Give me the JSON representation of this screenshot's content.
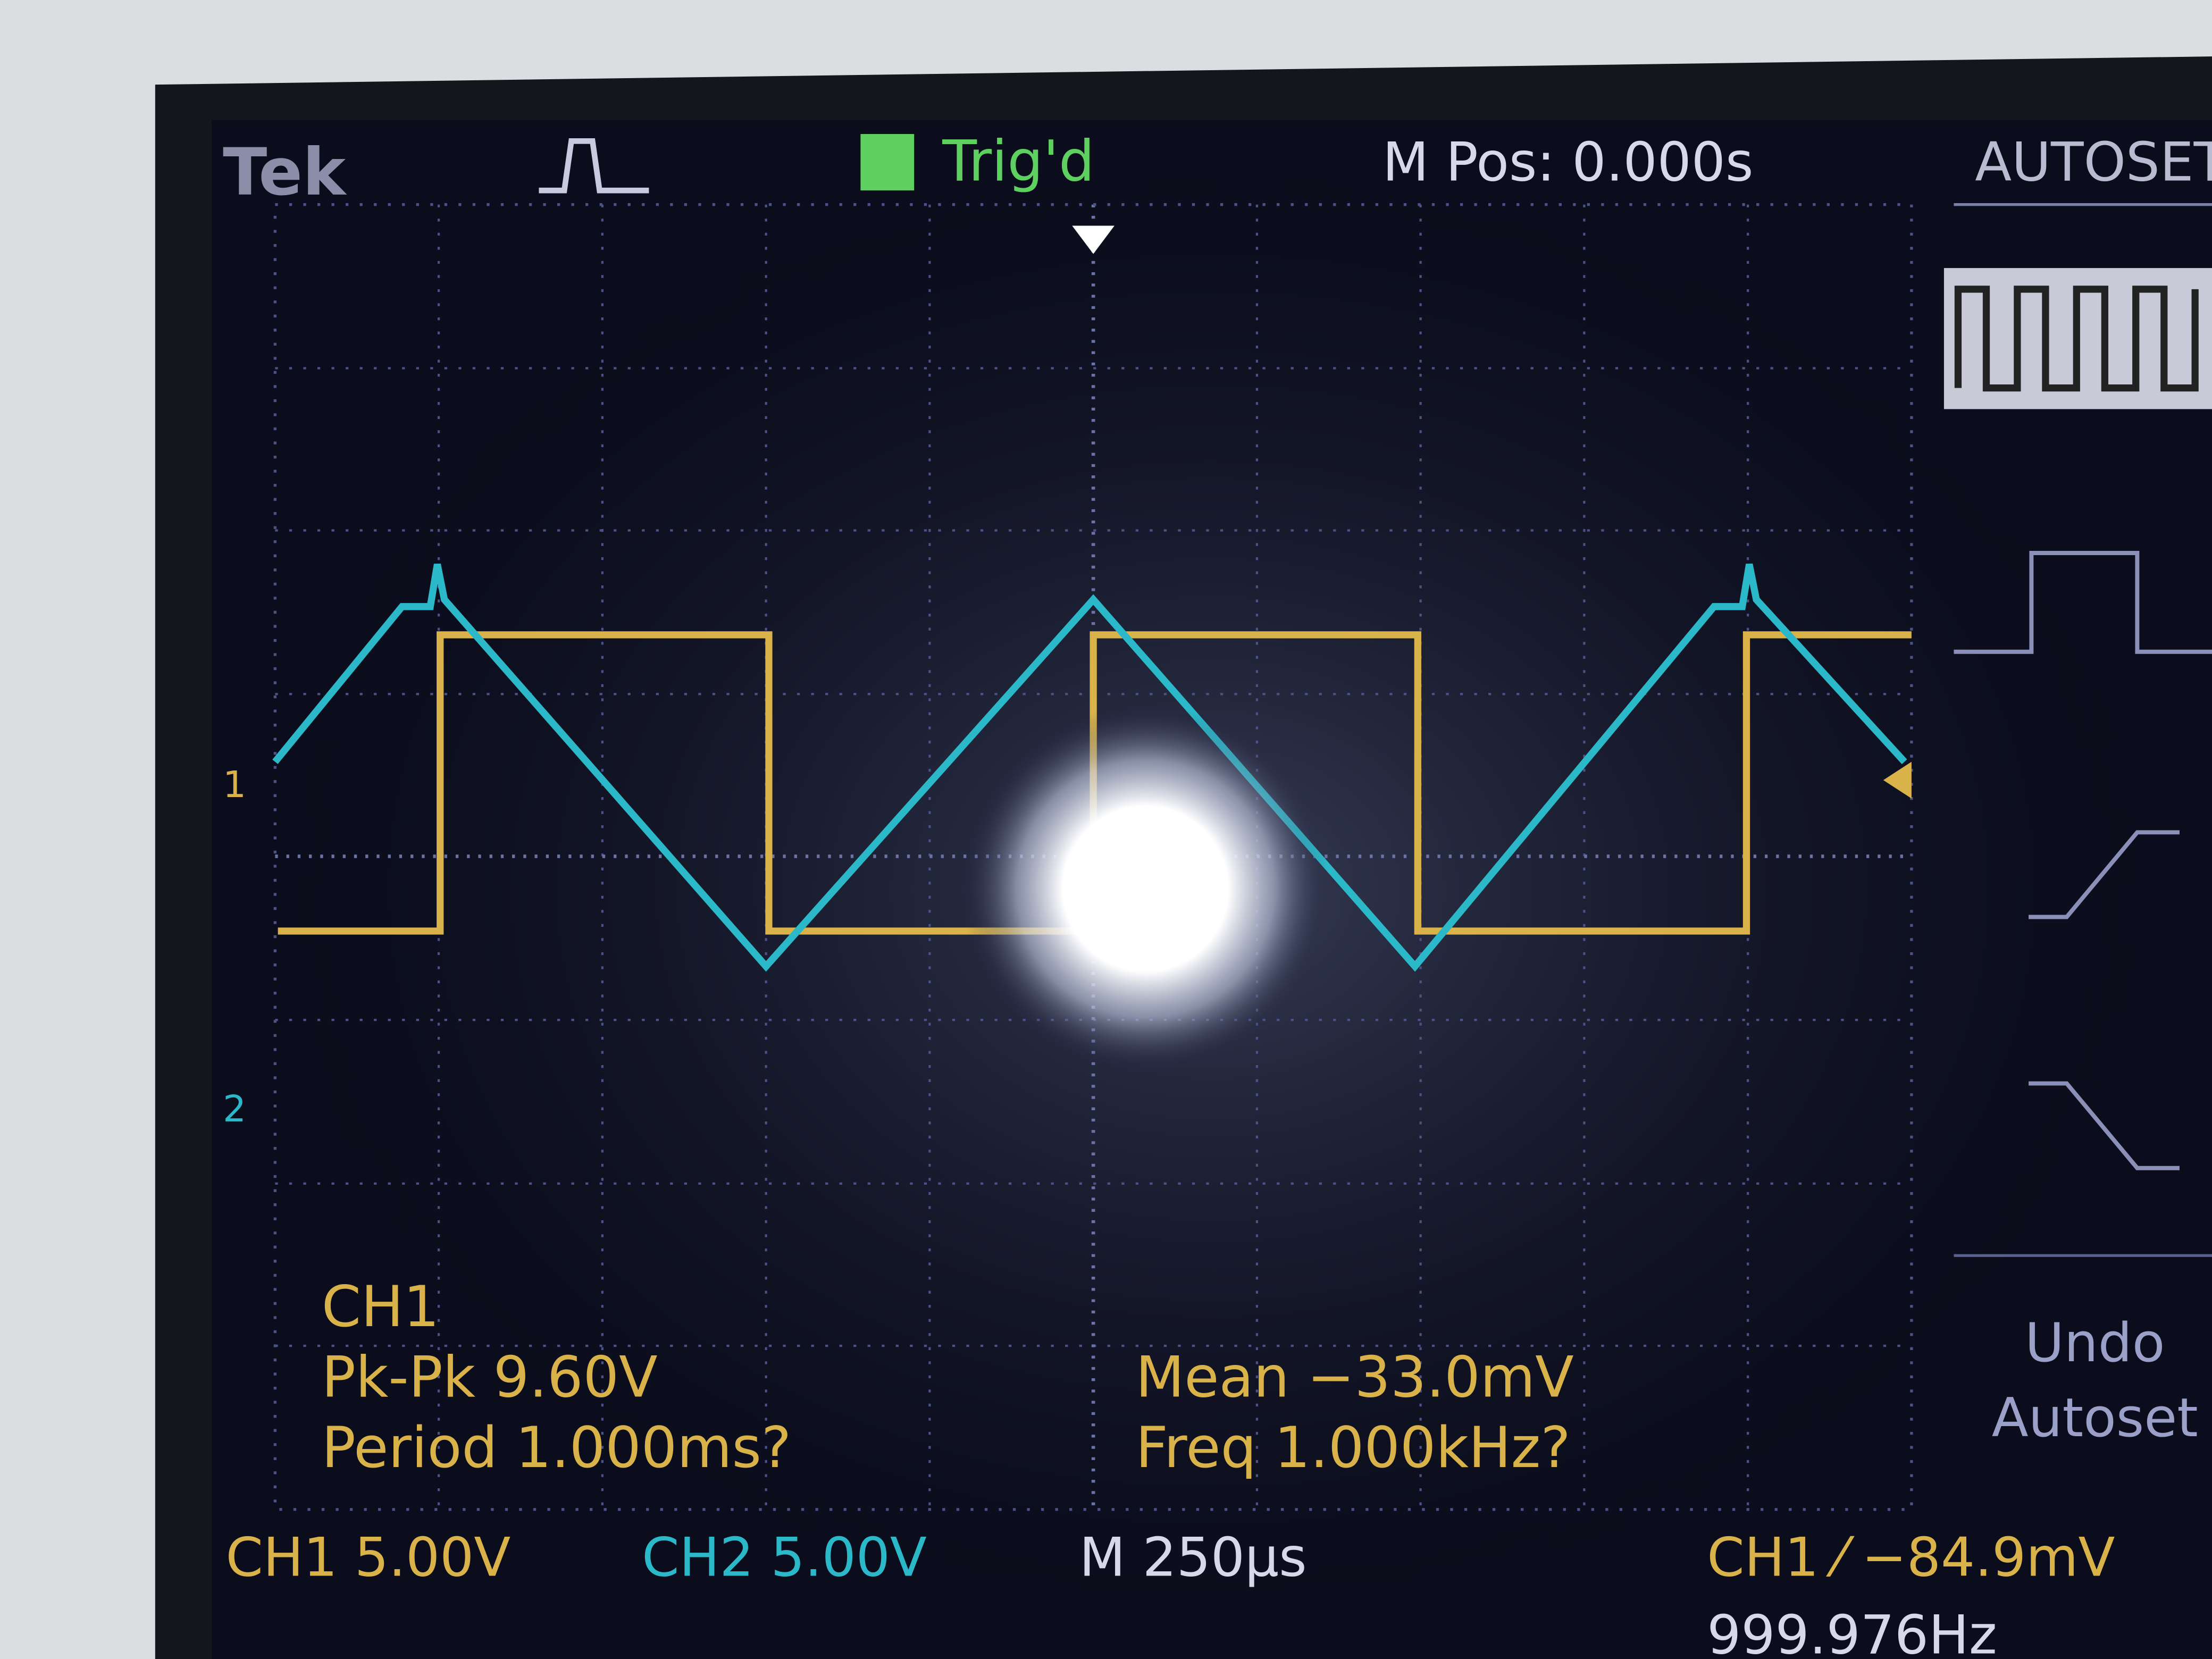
{
  "header": {
    "brand": "Tek",
    "trigger_status": "Trig'd",
    "m_pos": "M Pos: 0.000s",
    "menu_title": "AUTOSET"
  },
  "markers": {
    "ch1": "1",
    "ch2": "2"
  },
  "measurements": {
    "channel": "CH1",
    "pk_pk": "Pk-Pk 9.60V",
    "period": "Period 1.000ms?",
    "mean": "Mean −33.0mV",
    "freq": "Freq 1.000kHz?"
  },
  "menu": {
    "undo": [
      "Undo",
      "Autoset"
    ]
  },
  "status_bar": {
    "ch1_scale": "CH1 5.00V",
    "ch2_scale": "CH2 5.00V",
    "timebase": "M 250µs",
    "trigger": "CH1 ⁄ −84.9mV",
    "trigger_freq": "999.976Hz"
  }
}
